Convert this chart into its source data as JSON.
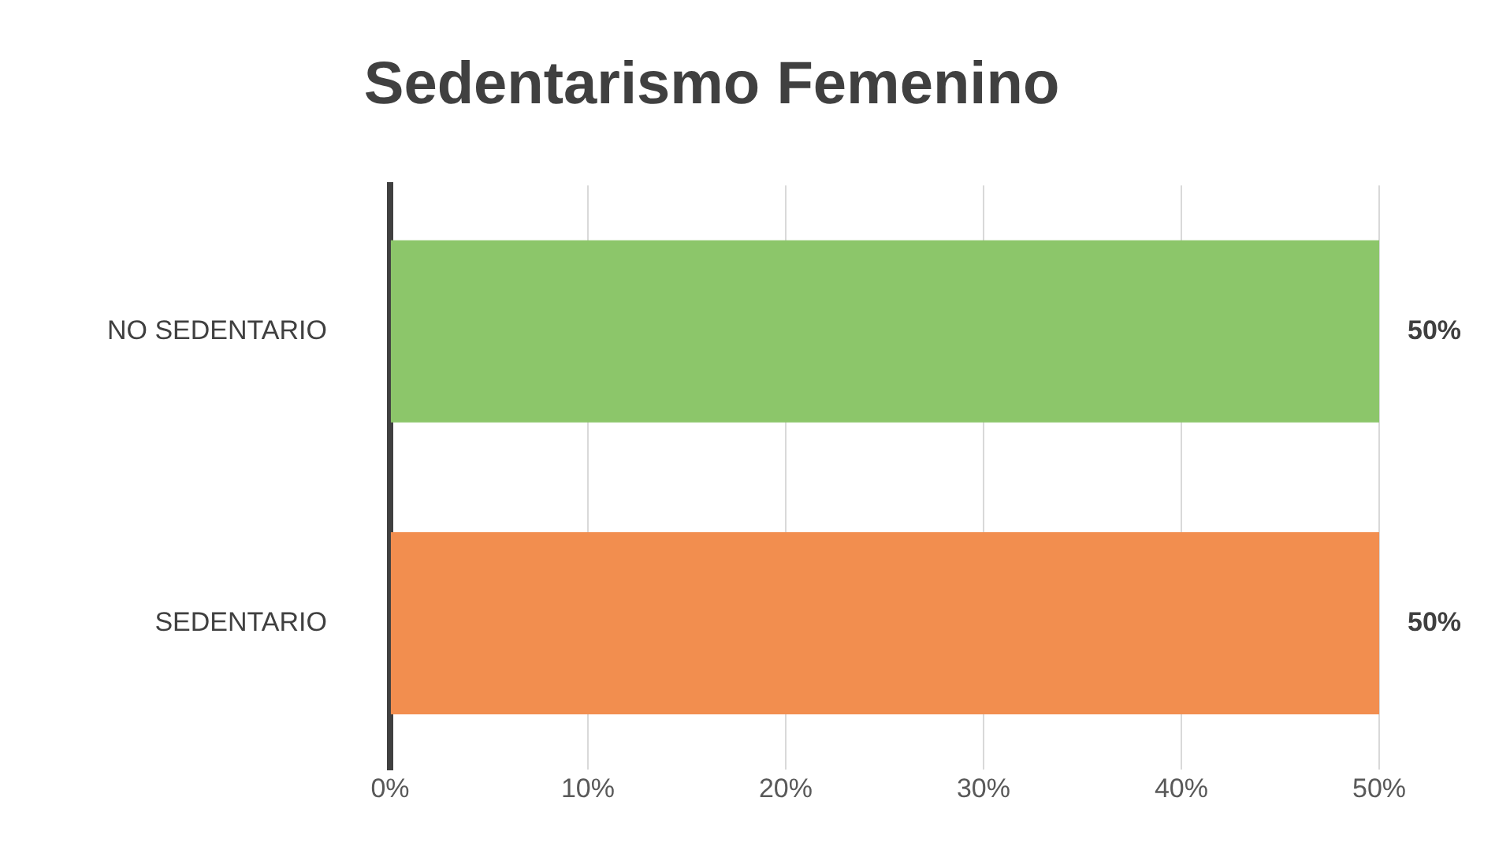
{
  "chart_data": {
    "type": "bar",
    "orientation": "horizontal",
    "title": "Sedentarismo Femenino",
    "categories": [
      "NO SEDENTARIO",
      "SEDENTARIO"
    ],
    "values": [
      50,
      50
    ],
    "colors": [
      "#8cc66a",
      "#f28e4f"
    ],
    "value_labels": [
      "50%",
      "50%"
    ],
    "xlim": [
      0,
      50
    ],
    "xticks": [
      {
        "value": 0,
        "label": "0%"
      },
      {
        "value": 10,
        "label": "10%"
      },
      {
        "value": 20,
        "label": "20%"
      },
      {
        "value": 30,
        "label": "30%"
      },
      {
        "value": 40,
        "label": "40%"
      },
      {
        "value": 50,
        "label": "50%"
      }
    ],
    "grid": "x",
    "legend": false
  }
}
